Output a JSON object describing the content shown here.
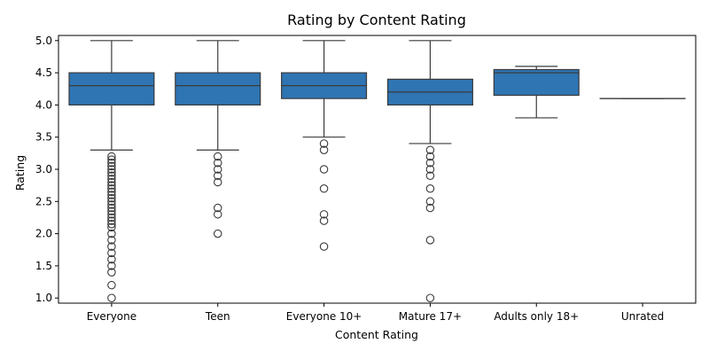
{
  "chart_data": {
    "type": "box",
    "title": "Rating by Content Rating",
    "xlabel": "Content Rating",
    "ylabel": "Rating",
    "ylim": [
      0.92,
      5.08
    ],
    "yticks": [
      "1.0",
      "1.5",
      "2.0",
      "2.5",
      "3.0",
      "3.5",
      "4.0",
      "4.5",
      "5.0"
    ],
    "box_color": "#2f74b3",
    "line_color": "#3a3a3a",
    "categories": [
      "Everyone",
      "Teen",
      "Everyone 10+",
      "Mature 17+",
      "Adults only 18+",
      "Unrated"
    ],
    "boxes": [
      {
        "category": "Everyone",
        "whisker_low": 3.3,
        "q1": 4.0,
        "median": 4.3,
        "q3": 4.5,
        "whisker_high": 5.0,
        "outliers": [
          3.2,
          3.15,
          3.1,
          3.05,
          3.0,
          2.95,
          2.9,
          2.85,
          2.8,
          2.75,
          2.7,
          2.65,
          2.6,
          2.55,
          2.5,
          2.45,
          2.4,
          2.35,
          2.3,
          2.25,
          2.2,
          2.15,
          2.1,
          2.0,
          1.9,
          1.8,
          1.7,
          1.6,
          1.5,
          1.4,
          1.2,
          1.0
        ]
      },
      {
        "category": "Teen",
        "whisker_low": 3.3,
        "q1": 4.0,
        "median": 4.3,
        "q3": 4.5,
        "whisker_high": 5.0,
        "outliers": [
          3.2,
          3.1,
          3.0,
          2.9,
          2.8,
          2.4,
          2.3,
          2.0
        ]
      },
      {
        "category": "Everyone 10+",
        "whisker_low": 3.5,
        "q1": 4.1,
        "median": 4.3,
        "q3": 4.5,
        "whisker_high": 5.0,
        "outliers": [
          3.4,
          3.3,
          3.0,
          2.7,
          2.3,
          2.2,
          1.8
        ]
      },
      {
        "category": "Mature 17+",
        "whisker_low": 3.4,
        "q1": 4.0,
        "median": 4.2,
        "q3": 4.4,
        "whisker_high": 5.0,
        "outliers": [
          3.3,
          3.2,
          3.1,
          3.0,
          2.9,
          2.7,
          2.5,
          2.4,
          1.9,
          1.0
        ]
      },
      {
        "category": "Adults only 18+",
        "whisker_low": 3.8,
        "q1": 4.15,
        "median": 4.5,
        "q3": 4.55,
        "whisker_high": 4.6,
        "outliers": []
      },
      {
        "category": "Unrated",
        "whisker_low": 4.1,
        "q1": 4.1,
        "median": 4.1,
        "q3": 4.1,
        "whisker_high": 4.1,
        "outliers": []
      }
    ]
  }
}
